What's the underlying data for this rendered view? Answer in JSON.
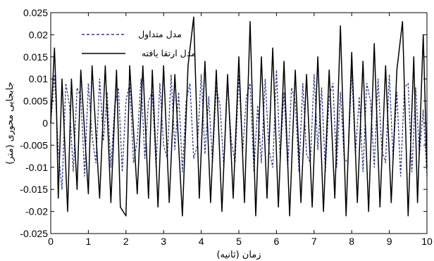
{
  "chart_data": {
    "type": "line",
    "xlabel": "زمان (ثانیه)",
    "ylabel": "جابجایی محوری (متر)",
    "xlim": [
      0,
      10
    ],
    "ylim": [
      -0.025,
      0.025
    ],
    "x_ticks": [
      "0",
      "1",
      "2",
      "3",
      "4",
      "5",
      "6",
      "7",
      "8",
      "9",
      "10"
    ],
    "y_ticks": [
      "0.025",
      "0.02",
      "0.015",
      "0.01",
      "0.005",
      "0",
      "-0.005",
      "-0.01",
      "-0.015",
      "-0.02",
      "-0.025"
    ],
    "grid": false,
    "legend_position": "top-left",
    "series": [
      {
        "name": "مدل متداول",
        "color": "#2b3a8f",
        "line_style": "dashed",
        "x": [
          0,
          0.1,
          0.2,
          0.3,
          0.4,
          0.5,
          0.6,
          0.7,
          0.8,
          0.9,
          1.0,
          1.1,
          1.2,
          1.3,
          1.4,
          1.5,
          1.6,
          1.7,
          1.8,
          1.9,
          2.0,
          2.1,
          2.2,
          2.3,
          2.4,
          2.5,
          2.6,
          2.7,
          2.8,
          2.9,
          3.0,
          3.1,
          3.2,
          3.3,
          3.4,
          3.5,
          3.6,
          3.7,
          3.8,
          3.9,
          4.0,
          4.1,
          4.2,
          4.3,
          4.4,
          4.5,
          4.6,
          4.7,
          4.8,
          4.9,
          5.0,
          5.1,
          5.2,
          5.3,
          5.4,
          5.5,
          5.6,
          5.7,
          5.8,
          5.9,
          6.0,
          6.1,
          6.2,
          6.3,
          6.4,
          6.5,
          6.6,
          6.7,
          6.8,
          6.9,
          7.0,
          7.1,
          7.2,
          7.3,
          7.4,
          7.5,
          7.6,
          7.7,
          7.8,
          7.9,
          8.0,
          8.1,
          8.2,
          8.3,
          8.4,
          8.5,
          8.6,
          8.7,
          8.8,
          8.9,
          9.0,
          9.1,
          9.2,
          9.3,
          9.4,
          9.5,
          9.6,
          9.7,
          9.8,
          9.9,
          10.0
        ],
        "y": [
          0,
          0.011,
          -0.006,
          -0.015,
          0.009,
          0.004,
          -0.011,
          0.008,
          0.006,
          -0.012,
          0.009,
          -0.003,
          -0.009,
          0.01,
          -0.004,
          0.007,
          -0.01,
          0.004,
          0.008,
          -0.011,
          0.005,
          0.009,
          -0.009,
          -0.004,
          0.01,
          -0.008,
          0.005,
          0.007,
          -0.01,
          0.009,
          -0.005,
          -0.008,
          0.011,
          -0.006,
          0.007,
          -0.011,
          0.005,
          0.009,
          -0.008,
          -0.005,
          0.011,
          -0.007,
          0.006,
          -0.009,
          0.008,
          0.004,
          -0.01,
          0.009,
          -0.004,
          -0.009,
          0.011,
          -0.007,
          0.006,
          0.009,
          -0.011,
          0.004,
          -0.009,
          0.01,
          -0.006,
          -0.01,
          0.012,
          -0.008,
          0.007,
          -0.01,
          0.008,
          0.005,
          -0.011,
          0.009,
          -0.007,
          -0.009,
          0.011,
          -0.006,
          0.008,
          -0.011,
          0.006,
          0.009,
          -0.01,
          0.007,
          -0.008,
          -0.009,
          0.012,
          -0.007,
          0.006,
          -0.011,
          0.009,
          0.005,
          -0.01,
          0.01,
          -0.006,
          -0.009,
          0.011,
          -0.008,
          0.007,
          -0.012,
          0.008,
          0.009,
          -0.011,
          0.008,
          -0.007,
          0.003,
          -0.012
        ]
      },
      {
        "name": "مدل ارتقا یافته",
        "color": "#000000",
        "line_style": "solid",
        "x": [
          0,
          0.1,
          0.15,
          0.2,
          0.3,
          0.45,
          0.55,
          0.7,
          0.8,
          1.0,
          1.1,
          1.3,
          1.45,
          1.6,
          1.75,
          1.85,
          2.0,
          2.1,
          2.3,
          2.45,
          2.6,
          2.7,
          2.85,
          3.0,
          3.15,
          3.3,
          3.5,
          3.65,
          3.8,
          3.95,
          4.1,
          4.25,
          4.4,
          4.55,
          4.7,
          4.85,
          5.0,
          5.15,
          5.3,
          5.45,
          5.6,
          5.75,
          5.9,
          6.05,
          6.2,
          6.35,
          6.5,
          6.65,
          6.8,
          6.95,
          7.1,
          7.25,
          7.4,
          7.55,
          7.7,
          7.85,
          8.0,
          8.15,
          8.3,
          8.45,
          8.6,
          8.75,
          8.9,
          9.05,
          9.2,
          9.35,
          9.5,
          9.65,
          9.75,
          9.9,
          10.0
        ],
        "y": [
          0,
          0.017,
          0.005,
          -0.017,
          0.01,
          -0.02,
          0.01,
          -0.015,
          0.012,
          -0.016,
          0.013,
          -0.017,
          0.013,
          -0.018,
          0.012,
          -0.019,
          -0.021,
          0.013,
          -0.016,
          0.013,
          -0.017,
          0.012,
          -0.019,
          0.013,
          -0.018,
          0.011,
          -0.021,
          0.013,
          0.024,
          -0.017,
          0.014,
          -0.018,
          0.012,
          -0.02,
          0.011,
          -0.017,
          0.015,
          -0.018,
          0.023,
          -0.021,
          0.015,
          -0.017,
          0.017,
          -0.019,
          0.014,
          -0.021,
          0.012,
          -0.018,
          0.011,
          -0.019,
          0.015,
          -0.02,
          0.012,
          -0.017,
          0.022,
          -0.021,
          0.016,
          -0.018,
          0.014,
          -0.02,
          0.018,
          -0.019,
          0.013,
          -0.018,
          0.012,
          0.023,
          -0.021,
          0.015,
          -0.018,
          0.02,
          -0.01
        ]
      }
    ]
  }
}
